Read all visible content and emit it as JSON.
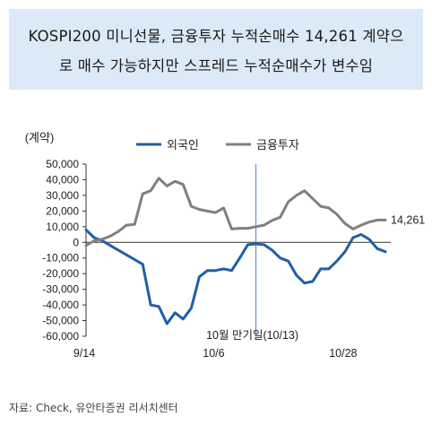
{
  "title": {
    "line1": "KOSPI200 미니선물, 금융투자 누적순매수 14,261 계약으",
    "line2": "로 매수 가능하지만 스프레드 누적순매수가 변수임"
  },
  "source": "자료: Check, 유안타증권 리서치센터",
  "chart_data": {
    "type": "line",
    "ylabel": "(계약)",
    "ylim": [
      -60000,
      50000
    ],
    "yticks": [
      50000,
      40000,
      30000,
      20000,
      10000,
      0,
      -10000,
      -20000,
      -30000,
      -40000,
      -50000,
      -60000
    ],
    "ytick_labels": [
      "50,000",
      "40,000",
      "30,000",
      "20,000",
      "10,000",
      "0",
      "-10,000",
      "-20,000",
      "-30,000",
      "-40,000",
      "-50,000",
      "-60,000"
    ],
    "x_tick_labels": [
      {
        "index": 0,
        "label": "9/14"
      },
      {
        "index": 16,
        "label": "10/6"
      },
      {
        "index": 32,
        "label": "10/28"
      }
    ],
    "annotation": {
      "index": 21,
      "label": "10월 만기일(10/13)"
    },
    "end_label": "14,261",
    "legend_position": "top",
    "series": [
      {
        "name": "외국인",
        "color": "#1f5fa8",
        "values": [
          8000,
          3000,
          1000,
          -2000,
          -5000,
          -8000,
          -11000,
          -14000,
          -40000,
          -41000,
          -52000,
          -45000,
          -49000,
          -42000,
          -22000,
          -18000,
          -18000,
          -17000,
          -18000,
          -10000,
          -1500,
          -1000,
          -1500,
          -5000,
          -10000,
          -12000,
          -21000,
          -26000,
          -25000,
          -17000,
          -17000,
          -12000,
          -6000,
          3000,
          5000,
          2000,
          -4000,
          -6000
        ]
      },
      {
        "name": "금융투자",
        "color": "#808080",
        "values": [
          -2000,
          1000,
          2000,
          4000,
          7000,
          11000,
          11500,
          31000,
          33000,
          41000,
          36000,
          39000,
          37000,
          23000,
          21000,
          20000,
          19000,
          22000,
          8500,
          9000,
          9000,
          10000,
          11000,
          14000,
          16000,
          26000,
          30000,
          33000,
          28000,
          23000,
          22000,
          18000,
          12000,
          8500,
          11000,
          13000,
          14261,
          14261
        ]
      }
    ]
  }
}
